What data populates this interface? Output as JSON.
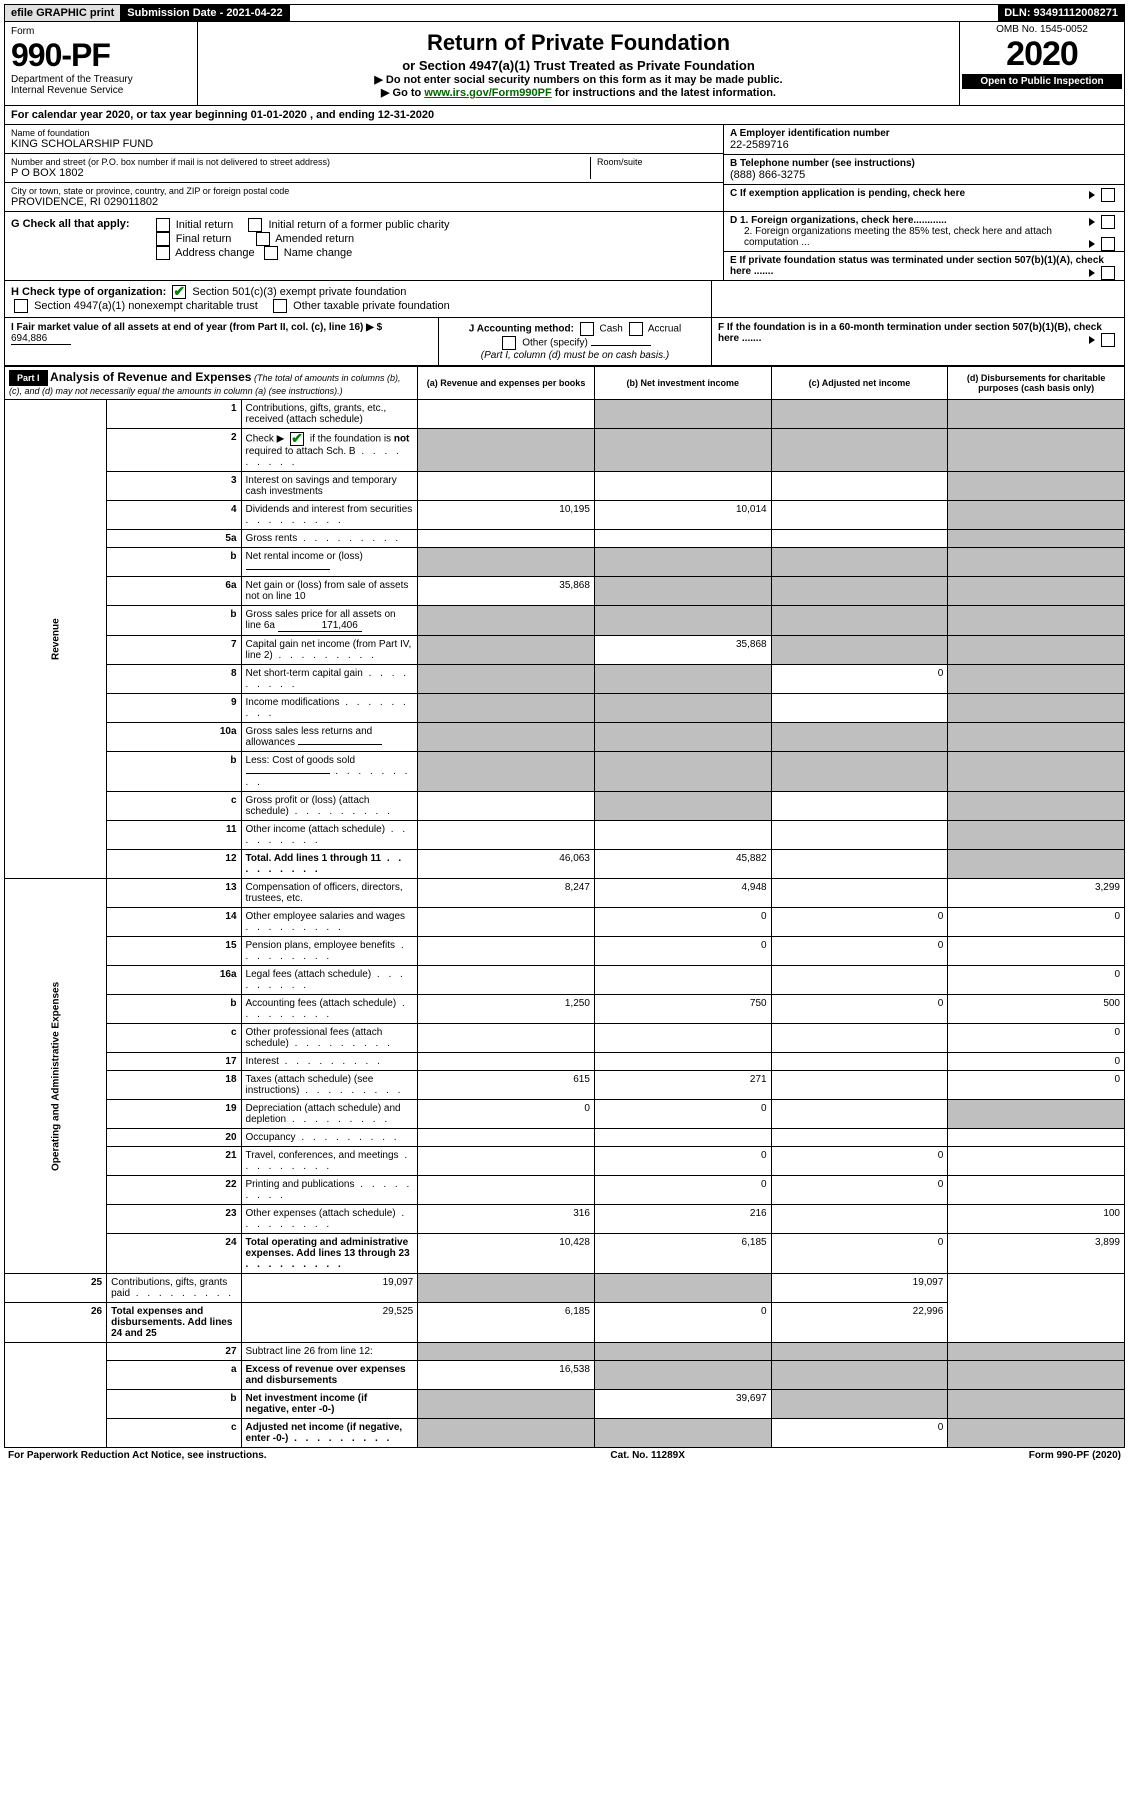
{
  "topbar": {
    "efile": "efile GRAPHIC print",
    "submission": "Submission Date - 2021-04-22",
    "dln": "DLN: 93491112008271"
  },
  "header": {
    "form_label": "Form",
    "form_num": "990-PF",
    "dept": "Department of the Treasury",
    "irs": "Internal Revenue Service",
    "title": "Return of Private Foundation",
    "subtitle": "or Section 4947(a)(1) Trust Treated as Private Foundation",
    "inst1": "▶ Do not enter social security numbers on this form as it may be made public.",
    "inst2_pre": "▶ Go to ",
    "inst2_link": "www.irs.gov/Form990PF",
    "inst2_post": " for instructions and the latest information.",
    "omb": "OMB No. 1545-0052",
    "year": "2020",
    "open": "Open to Public Inspection"
  },
  "calyear": "For calendar year 2020, or tax year beginning 01-01-2020                  , and ending 12-31-2020",
  "entity": {
    "name_label": "Name of foundation",
    "name": "KING SCHOLARSHIP FUND",
    "addr_label": "Number and street (or P.O. box number if mail is not delivered to street address)",
    "room_label": "Room/suite",
    "addr": "P O BOX 1802",
    "city_label": "City or town, state or province, country, and ZIP or foreign postal code",
    "city": "PROVIDENCE, RI  029011802",
    "a_label": "A Employer identification number",
    "a_val": "22-2589716",
    "b_label": "B Telephone number (see instructions)",
    "b_val": "(888) 866-3275",
    "c_label": "C If exemption application is pending, check here",
    "d1": "D 1. Foreign organizations, check here............",
    "d2": "2. Foreign organizations meeting the 85% test, check here and attach computation ...",
    "e_label": "E  If private foundation status was terminated under section 507(b)(1)(A), check here .......",
    "f_label": "F  If the foundation is in a 60-month termination under section 507(b)(1)(B), check here .......",
    "g_label": "G Check all that apply:",
    "g_opts": [
      "Initial return",
      "Initial return of a former public charity",
      "Final return",
      "Amended return",
      "Address change",
      "Name change"
    ],
    "h_label": "H Check type of organization:",
    "h_opt1": "Section 501(c)(3) exempt private foundation",
    "h_opt2": "Section 4947(a)(1) nonexempt charitable trust",
    "h_opt3": "Other taxable private foundation",
    "i_label": "I Fair market value of all assets at end of year (from Part II, col. (c), line 16) ▶ $",
    "i_val": "694,886",
    "j_label": "J Accounting method:",
    "j_cash": "Cash",
    "j_accrual": "Accrual",
    "j_other": "Other (specify)",
    "j_note": "(Part I, column (d) must be on cash basis.)"
  },
  "part1": {
    "label": "Part I",
    "title": "Analysis of Revenue and Expenses",
    "title_note": " (The total of amounts in columns (b), (c), and (d) may not necessarily equal the amounts in column (a) (see instructions).)",
    "cols": {
      "a": "(a) Revenue and expenses per books",
      "b": "(b) Net investment income",
      "c": "(c) Adjusted net income",
      "d": "(d) Disbursements for charitable purposes (cash basis only)"
    },
    "side_rev": "Revenue",
    "side_exp": "Operating and Administrative Expenses",
    "rows": [
      {
        "n": "1",
        "d": "Contributions, gifts, grants, etc., received (attach schedule)",
        "a": "",
        "b": "blank",
        "c": "blank",
        "dd": "blank"
      },
      {
        "n": "2",
        "d": "Check ▶ ☑ if the foundation is not required to attach Sch. B",
        "dots": true,
        "a": "blank",
        "b": "blank",
        "c": "blank",
        "dd": "blank",
        "bold_not": true
      },
      {
        "n": "3",
        "d": "Interest on savings and temporary cash investments",
        "a": "",
        "b": "",
        "c": "",
        "dd": "blank"
      },
      {
        "n": "4",
        "d": "Dividends and interest from securities",
        "dots": true,
        "a": "10,195",
        "b": "10,014",
        "c": "",
        "dd": "blank"
      },
      {
        "n": "5a",
        "d": "Gross rents",
        "dots": true,
        "a": "",
        "b": "",
        "c": "",
        "dd": "blank"
      },
      {
        "n": "b",
        "d": "Net rental income or (loss)",
        "sub": true,
        "a": "blank",
        "b": "blank",
        "c": "blank",
        "dd": "blank"
      },
      {
        "n": "6a",
        "d": "Net gain or (loss) from sale of assets not on line 10",
        "a": "35,868",
        "b": "blank",
        "c": "blank",
        "dd": "blank"
      },
      {
        "n": "b",
        "d": "Gross sales price for all assets on line 6a",
        "sub": true,
        "subval": "171,406",
        "a": "blank",
        "b": "blank",
        "c": "blank",
        "dd": "blank"
      },
      {
        "n": "7",
        "d": "Capital gain net income (from Part IV, line 2)",
        "dots": true,
        "a": "blank",
        "b": "35,868",
        "c": "blank",
        "dd": "blank"
      },
      {
        "n": "8",
        "d": "Net short-term capital gain",
        "dots": true,
        "a": "blank",
        "b": "blank",
        "c": "0",
        "dd": "blank"
      },
      {
        "n": "9",
        "d": "Income modifications",
        "dots": true,
        "a": "blank",
        "b": "blank",
        "c": "",
        "dd": "blank"
      },
      {
        "n": "10a",
        "d": "Gross sales less returns and allowances",
        "sub": true,
        "a": "blank",
        "b": "blank",
        "c": "blank",
        "dd": "blank"
      },
      {
        "n": "b",
        "d": "Less: Cost of goods sold",
        "dots": true,
        "sub": true,
        "a": "blank",
        "b": "blank",
        "c": "blank",
        "dd": "blank"
      },
      {
        "n": "c",
        "d": "Gross profit or (loss) (attach schedule)",
        "dots": true,
        "a": "",
        "b": "blank",
        "c": "",
        "dd": "blank"
      },
      {
        "n": "11",
        "d": "Other income (attach schedule)",
        "dots": true,
        "a": "",
        "b": "",
        "c": "",
        "dd": "blank"
      },
      {
        "n": "12",
        "d": "Total. Add lines 1 through 11",
        "dots": true,
        "bold": true,
        "a": "46,063",
        "b": "45,882",
        "c": "",
        "dd": "blank"
      },
      {
        "n": "13",
        "d": "Compensation of officers, directors, trustees, etc.",
        "a": "8,247",
        "b": "4,948",
        "c": "",
        "dd": "3,299",
        "sec": "exp"
      },
      {
        "n": "14",
        "d": "Other employee salaries and wages",
        "dots": true,
        "a": "",
        "b": "0",
        "c": "0",
        "dd": "0"
      },
      {
        "n": "15",
        "d": "Pension plans, employee benefits",
        "dots": true,
        "a": "",
        "b": "0",
        "c": "0",
        "dd": ""
      },
      {
        "n": "16a",
        "d": "Legal fees (attach schedule)",
        "dots": true,
        "a": "",
        "b": "",
        "c": "",
        "dd": "0"
      },
      {
        "n": "b",
        "d": "Accounting fees (attach schedule)",
        "dots": true,
        "a": "1,250",
        "b": "750",
        "c": "0",
        "dd": "500"
      },
      {
        "n": "c",
        "d": "Other professional fees (attach schedule)",
        "dots": true,
        "a": "",
        "b": "",
        "c": "",
        "dd": "0"
      },
      {
        "n": "17",
        "d": "Interest",
        "dots": true,
        "a": "",
        "b": "",
        "c": "",
        "dd": "0"
      },
      {
        "n": "18",
        "d": "Taxes (attach schedule) (see instructions)",
        "dots": true,
        "a": "615",
        "b": "271",
        "c": "",
        "dd": "0"
      },
      {
        "n": "19",
        "d": "Depreciation (attach schedule) and depletion",
        "dots": true,
        "a": "0",
        "b": "0",
        "c": "",
        "dd": "blank"
      },
      {
        "n": "20",
        "d": "Occupancy",
        "dots": true,
        "a": "",
        "b": "",
        "c": "",
        "dd": ""
      },
      {
        "n": "21",
        "d": "Travel, conferences, and meetings",
        "dots": true,
        "a": "",
        "b": "0",
        "c": "0",
        "dd": ""
      },
      {
        "n": "22",
        "d": "Printing and publications",
        "dots": true,
        "a": "",
        "b": "0",
        "c": "0",
        "dd": ""
      },
      {
        "n": "23",
        "d": "Other expenses (attach schedule)",
        "dots": true,
        "a": "316",
        "b": "216",
        "c": "",
        "dd": "100"
      },
      {
        "n": "24",
        "d": "Total operating and administrative expenses. Add lines 13 through 23",
        "dots": true,
        "bold": true,
        "a": "10,428",
        "b": "6,185",
        "c": "0",
        "dd": "3,899"
      },
      {
        "n": "25",
        "d": "Contributions, gifts, grants paid",
        "dots": true,
        "a": "19,097",
        "b": "blank",
        "c": "blank",
        "dd": "19,097"
      },
      {
        "n": "26",
        "d": "Total expenses and disbursements. Add lines 24 and 25",
        "bold": true,
        "a": "29,525",
        "b": "6,185",
        "c": "0",
        "dd": "22,996"
      },
      {
        "n": "27",
        "d": "Subtract line 26 from line 12:",
        "a": "blank",
        "b": "blank",
        "c": "blank",
        "dd": "blank",
        "sec": "last"
      },
      {
        "n": "a",
        "d": "Excess of revenue over expenses and disbursements",
        "bold": true,
        "a": "16,538",
        "b": "blank",
        "c": "blank",
        "dd": "blank"
      },
      {
        "n": "b",
        "d": "Net investment income (if negative, enter -0-)",
        "bold": true,
        "a": "blank",
        "b": "39,697",
        "c": "blank",
        "dd": "blank"
      },
      {
        "n": "c",
        "d": "Adjusted net income (if negative, enter -0-)",
        "dots": true,
        "bold": true,
        "a": "blank",
        "b": "blank",
        "c": "0",
        "dd": "blank"
      }
    ]
  },
  "footer": {
    "left": "For Paperwork Reduction Act Notice, see instructions.",
    "mid": "Cat. No. 11289X",
    "right": "Form 990-PF (2020)"
  }
}
